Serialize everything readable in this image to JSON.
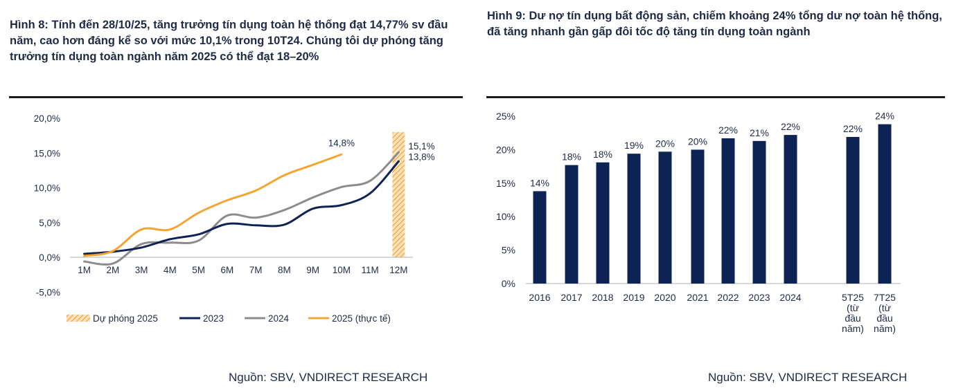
{
  "figure8": {
    "title": "Hình 8: Tính đến 28/10/25, tăng trưởng tín dụng toàn hệ thống đạt 14,77% sv đầu năm, cao hơn đáng kể so với mức 10,1% trong 10T24. Chúng tôi dự phóng tăng trưởng tín dụng toàn ngành năm 2025 có thể đạt 18–20%",
    "source": "Nguồn: SBV, VNDIRECT RESEARCH"
  },
  "figure9": {
    "title": "Hình 9: Dư nợ tín dụng bất động sản, chiếm khoảng 24% tổng dư nợ toàn hệ thống, đã tăng nhanh gần gấp đôi tốc độ tăng tín dụng toàn ngành",
    "source": "Nguồn: SBV, VNDIRECT RESEARCH"
  },
  "colors": {
    "navy": "#0d2354",
    "gray": "#8c8c8c",
    "orange": "#f4a431",
    "text": "#1f2a44",
    "axis": "#b0b0b0"
  },
  "chart_data": [
    {
      "type": "line",
      "title": "",
      "categories": [
        "1M",
        "2M",
        "3M",
        "4M",
        "5M",
        "6M",
        "7M",
        "8M",
        "9M",
        "10M",
        "11M",
        "12M"
      ],
      "ylim": [
        -5,
        20
      ],
      "yticks": [
        -5,
        0,
        5,
        10,
        15,
        20
      ],
      "ytick_labels": [
        "-5,0%",
        "0,0%",
        "5,0%",
        "10,0%",
        "15,0%",
        "20,0%"
      ],
      "legend_position": "bottom",
      "series": [
        {
          "name": "2023",
          "color": "#0d2354",
          "values": [
            0.5,
            0.8,
            1.4,
            2.6,
            3.3,
            4.8,
            4.6,
            4.7,
            7.0,
            7.5,
            9.2,
            13.8
          ]
        },
        {
          "name": "2024",
          "color": "#8c8c8c",
          "values": [
            -0.6,
            -0.9,
            1.9,
            2.1,
            2.4,
            6.0,
            5.7,
            6.8,
            8.6,
            10.1,
            11.0,
            15.1
          ]
        },
        {
          "name": "2025 (thực tế)",
          "color": "#f4a431",
          "values": [
            0.2,
            0.9,
            4.0,
            4.0,
            6.4,
            8.2,
            9.6,
            11.8,
            13.3,
            14.8,
            null,
            null
          ]
        }
      ],
      "forecast": {
        "name": "Dự phóng 2025",
        "category": "12M",
        "range": [
          0,
          18
        ]
      },
      "data_labels": [
        {
          "series": "2025 (thực tế)",
          "category": "10M",
          "text": "14,8%"
        },
        {
          "series": "2024",
          "category": "12M",
          "text": "15,1%"
        },
        {
          "series": "2023",
          "category": "12M",
          "text": "13,8%"
        }
      ],
      "legend": [
        "Dự phóng 2025",
        "2023",
        "2024",
        "2025 (thực tế)"
      ]
    },
    {
      "type": "bar",
      "title": "",
      "categories": [
        "2016",
        "2017",
        "2018",
        "2019",
        "2020",
        "2021",
        "2022",
        "2023",
        "2024",
        "5T25 (từ đầu năm)",
        "7T25 (từ đầu năm)"
      ],
      "category_lines": [
        [
          "2016"
        ],
        [
          "2017"
        ],
        [
          "2018"
        ],
        [
          "2019"
        ],
        [
          "2020"
        ],
        [
          "2021"
        ],
        [
          "2022"
        ],
        [
          "2023"
        ],
        [
          "2024"
        ],
        [
          "5T25",
          "(từ",
          "đầu",
          "năm)"
        ],
        [
          "7T25",
          "(từ",
          "đầu",
          "năm)"
        ]
      ],
      "values": [
        13.8,
        17.7,
        18.1,
        19.4,
        19.7,
        20.0,
        21.7,
        21.3,
        22.2,
        21.9,
        23.8
      ],
      "data_labels": [
        "14%",
        "18%",
        "18%",
        "19%",
        "20%",
        "20%",
        "22%",
        "21%",
        "22%",
        "22%",
        "24%"
      ],
      "ylim": [
        0,
        25
      ],
      "yticks": [
        0,
        5,
        10,
        15,
        20,
        25
      ],
      "ytick_labels": [
        "0%",
        "5%",
        "10%",
        "15%",
        "20%",
        "25%"
      ],
      "color": "#0d2354"
    }
  ]
}
